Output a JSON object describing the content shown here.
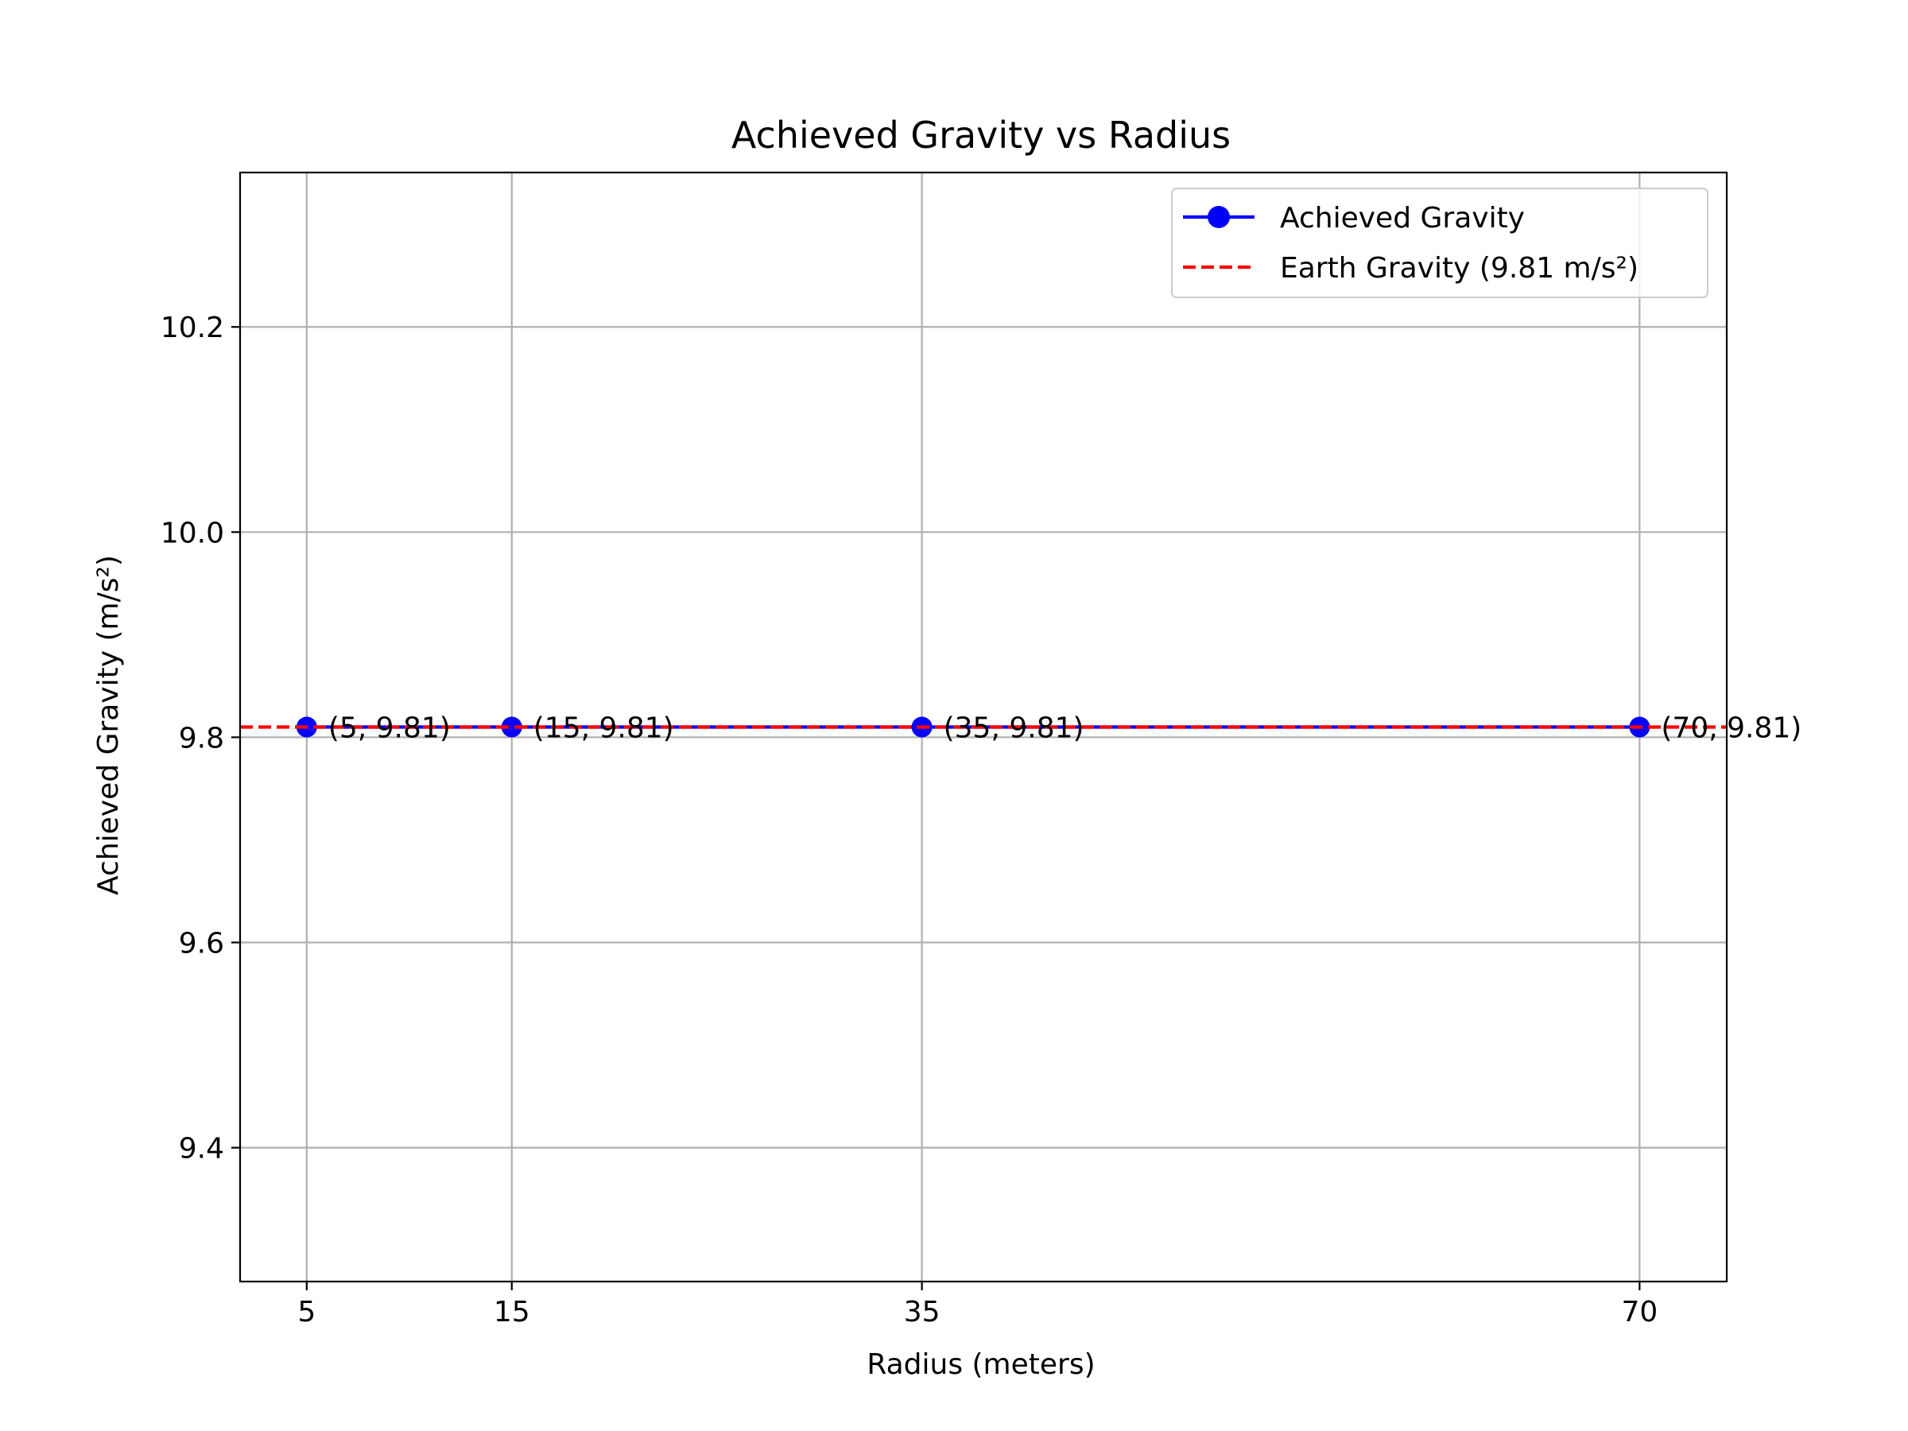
{
  "chart_data": {
    "type": "line",
    "title": "Achieved Gravity vs Radius",
    "xlabel": "Radius (meters)",
    "ylabel": "Achieved Gravity (m/s²)",
    "xlim": [
      1.75,
      74.25
    ],
    "ylim": [
      9.2695,
      10.3505
    ],
    "xticks": [
      5,
      15,
      35,
      70
    ],
    "xtick_labels": [
      "5",
      "15",
      "35",
      "70"
    ],
    "yticks": [
      9.4,
      9.6,
      9.8,
      10.0,
      10.2
    ],
    "ytick_labels": [
      "9.4",
      "9.6",
      "9.8",
      "10.0",
      "10.2"
    ],
    "grid": true,
    "legend_position": "top-right",
    "series": [
      {
        "name": "Achieved Gravity",
        "color": "#0000ff",
        "marker": "circle",
        "line_style": "solid",
        "x": [
          5,
          15,
          35,
          70
        ],
        "y": [
          9.81,
          9.81,
          9.81,
          9.81
        ],
        "point_labels": [
          "(5, 9.81)",
          "(15, 9.81)",
          "(35, 9.81)",
          "(70, 9.81)"
        ]
      }
    ],
    "reference_lines": [
      {
        "name": "Earth Gravity (9.81 m/s²)",
        "y": 9.81,
        "color": "#ff0000",
        "line_style": "dashed"
      }
    ]
  }
}
